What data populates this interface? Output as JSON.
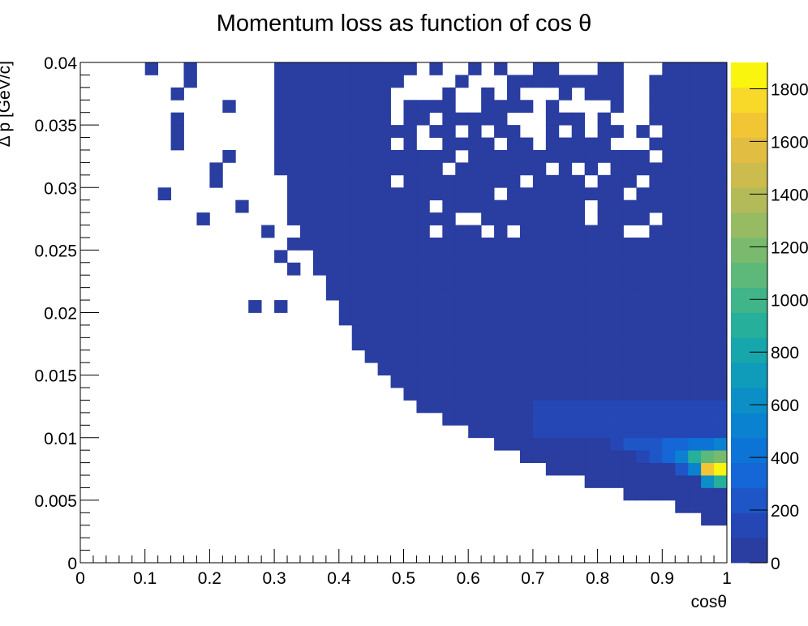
{
  "chart_data": {
    "type": "heatmap",
    "title": "Momentum loss as function of cos θ",
    "xlabel": "cosθ",
    "ylabel": "Δ p [GeV/c]",
    "xlim": [
      0,
      1
    ],
    "ylim": [
      0,
      0.04
    ],
    "x_ticks": [
      "0",
      "0.1",
      "0.2",
      "0.3",
      "0.4",
      "0.5",
      "0.6",
      "0.7",
      "0.8",
      "0.9",
      "1"
    ],
    "y_ticks": [
      "0",
      "0.005",
      "0.01",
      "0.015",
      "0.02",
      "0.025",
      "0.03",
      "0.035",
      "0.04"
    ],
    "colorbar": {
      "range": [
        0,
        1900
      ],
      "tick_values": [
        0,
        200,
        400,
        600,
        800,
        1000,
        1200,
        1400,
        1600,
        1800
      ],
      "tick_labels": [
        "0",
        "200",
        "400",
        "600",
        "800",
        "1000",
        "1200",
        "1400",
        "1600",
        "1800"
      ],
      "colors": [
        "#2a3da0",
        "#2547b6",
        "#1e56c8",
        "#1566d6",
        "#0c74d6",
        "#0a82d0",
        "#0b8fc6",
        "#0f9bba",
        "#17a6ab",
        "#26af9a",
        "#3fb589",
        "#5cb97a",
        "#7aba6e",
        "#97bb63",
        "#b3bb58",
        "#ccbb4d",
        "#e1bd42",
        "#f1c534",
        "#f8d92a",
        "#f9f50f"
      ]
    },
    "bins": {
      "x_bins": 50,
      "y_bins": 40,
      "x_range": [
        0,
        1
      ],
      "y_range": [
        0,
        0.04
      ],
      "lower_edge": [
        [
          0.0,
          0.0001
        ],
        [
          0.02,
          0.0001
        ],
        [
          0.04,
          0.0001
        ],
        [
          0.06,
          0.0001
        ],
        [
          0.08,
          0.0001
        ],
        [
          0.1,
          0.0001
        ],
        [
          0.12,
          0.0001
        ],
        [
          0.14,
          0.0001
        ],
        [
          0.16,
          0.0001
        ],
        [
          0.18,
          0.0001
        ],
        [
          0.2,
          0.0001
        ],
        [
          0.22,
          0.0001
        ],
        [
          0.24,
          0.0001
        ],
        [
          0.26,
          0.0001
        ],
        [
          0.28,
          0.0001
        ],
        [
          0.3,
          0.0001
        ],
        [
          0.32,
          0.0001
        ],
        [
          0.34,
          0.0001
        ],
        [
          0.36,
          0.0001
        ],
        [
          0.38,
          0.0001
        ],
        [
          0.4,
          0.0001
        ],
        [
          0.42,
          0.0001
        ],
        [
          0.44,
          0.0001
        ],
        [
          0.46,
          0.0001
        ],
        [
          0.48,
          0.0001
        ],
        [
          0.5,
          0.0001
        ],
        [
          0.52,
          0.0001
        ],
        [
          0.54,
          0.0001
        ],
        [
          0.56,
          0.0001
        ],
        [
          0.58,
          0.0001
        ],
        [
          0.6,
          0.0001
        ],
        [
          0.62,
          0.0001
        ],
        [
          0.64,
          0.0001
        ],
        [
          0.66,
          0.0001
        ],
        [
          0.68,
          0.0001
        ],
        [
          0.7,
          0.0001
        ],
        [
          0.72,
          0.0001
        ],
        [
          0.74,
          0.0001
        ],
        [
          0.76,
          0.0001
        ],
        [
          0.78,
          0.0001
        ],
        [
          0.8,
          0.0001
        ],
        [
          0.82,
          0.0001
        ],
        [
          0.84,
          0.0001
        ],
        [
          0.86,
          0.0001
        ],
        [
          0.88,
          0.0001
        ],
        [
          0.9,
          0.0001
        ],
        [
          0.92,
          0.0001
        ],
        [
          0.94,
          0.0001
        ],
        [
          0.96,
          0.0001
        ],
        [
          0.98,
          0.0001
        ]
      ],
      "filled_bottom_row": [
        17,
        18,
        18,
        18,
        18,
        18,
        18,
        18,
        19,
        19,
        19,
        19,
        20,
        20,
        21,
        21,
        21,
        22,
        22,
        22,
        23,
        23,
        23,
        24,
        24,
        24,
        25,
        25,
        26,
        26,
        27,
        27,
        27,
        28,
        28,
        28,
        29,
        29,
        30,
        30,
        30,
        31,
        31,
        32,
        32,
        33,
        33,
        34,
        34,
        35
      ],
      "filled_from_col_by_row": {
        "39": 15,
        "38": 15,
        "37": 15,
        "36": 15,
        "35": 15,
        "34": 15,
        "33": 15,
        "32": 15,
        "31": 15,
        "30": 16,
        "29": 16,
        "28": 16,
        "27": 16,
        "26": 17,
        "25": 17,
        "24": 18,
        "23": 18,
        "22": 19,
        "21": 19,
        "20": 20,
        "19": 20,
        "18": 21,
        "17": 21,
        "16": 22,
        "15": 23,
        "14": 24,
        "13": 25,
        "12": 26,
        "11": 28,
        "10": 30,
        "9": 32,
        "8": 34,
        "7": 36,
        "6": 39,
        "5": 42,
        "4": 46,
        "3": 48
      },
      "hot_cells": [
        {
          "col": 46,
          "row": 7,
          "value": 250
        },
        {
          "col": 47,
          "row": 7,
          "value": 500
        },
        {
          "col": 48,
          "row": 7,
          "value": 1700
        },
        {
          "col": 49,
          "row": 7,
          "value": 1900
        },
        {
          "col": 48,
          "row": 6,
          "value": 600
        },
        {
          "col": 49,
          "row": 6,
          "value": 900
        },
        {
          "col": 45,
          "row": 8,
          "value": 300
        },
        {
          "col": 46,
          "row": 8,
          "value": 500
        },
        {
          "col": 47,
          "row": 8,
          "value": 900
        },
        {
          "col": 48,
          "row": 8,
          "value": 1100
        },
        {
          "col": 49,
          "row": 8,
          "value": 1200
        },
        {
          "col": 44,
          "row": 8,
          "value": 200
        },
        {
          "col": 43,
          "row": 8,
          "value": 150
        },
        {
          "col": 44,
          "row": 9,
          "value": 250
        },
        {
          "col": 45,
          "row": 9,
          "value": 300
        },
        {
          "col": 46,
          "row": 9,
          "value": 350
        },
        {
          "col": 47,
          "row": 9,
          "value": 400
        },
        {
          "col": 48,
          "row": 9,
          "value": 450
        },
        {
          "col": 49,
          "row": 9,
          "value": 500
        },
        {
          "col": 42,
          "row": 9,
          "value": 200
        },
        {
          "col": 43,
          "row": 9,
          "value": 220
        },
        {
          "col": 41,
          "row": 9,
          "value": 180
        }
      ]
    }
  }
}
